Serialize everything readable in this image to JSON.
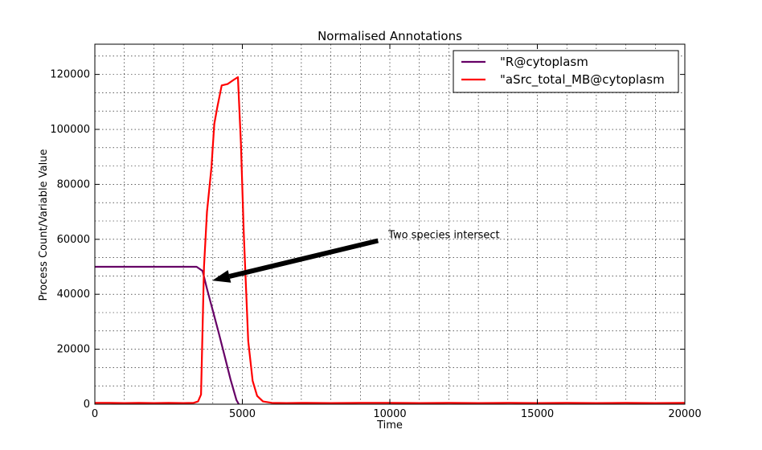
{
  "chart_data": {
    "type": "line",
    "title": "Normalised Annotations",
    "xlabel": "Time",
    "ylabel": "Process Count/Variable Value",
    "xlim": [
      0,
      20000
    ],
    "ylim": [
      0,
      120000
    ],
    "ylim_top": 131000,
    "x_ticks": [
      0,
      5000,
      10000,
      15000,
      20000
    ],
    "x_tick_labels": [
      "0",
      "5000",
      "10000",
      "15000",
      "20000"
    ],
    "y_ticks": [
      0,
      20000,
      40000,
      60000,
      80000,
      100000,
      120000
    ],
    "y_tick_labels": [
      "0",
      "20000",
      "40000",
      "60000",
      "80000",
      "100000",
      "120000"
    ],
    "grid": true,
    "legend_position": "top-right",
    "series": [
      {
        "name": "\"R@cytoplasm",
        "color": "#660066",
        "x": [
          0,
          500,
          1000,
          1500,
          2000,
          2500,
          3000,
          3450,
          3650,
          3800,
          4000,
          4200,
          4400,
          4600,
          4800,
          4880
        ],
        "y": [
          50000,
          50000,
          50000,
          50000,
          50000,
          50000,
          50000,
          50000,
          48500,
          42000,
          34000,
          26000,
          17500,
          9000,
          1500,
          0
        ]
      },
      {
        "name": "\"aSrc_total_MB@cytoplasm",
        "color": "#ff0000",
        "x": [
          0,
          500,
          1000,
          1500,
          2000,
          2500,
          3000,
          3350,
          3500,
          3600,
          3700,
          3800,
          3950,
          4050,
          4150,
          4300,
          4500,
          4700,
          4850,
          4950,
          5050,
          5200,
          5350,
          5500,
          5700,
          6000,
          6500,
          7000,
          8000,
          9000,
          10000,
          11000,
          12000,
          13000,
          14000,
          15000,
          16000,
          17000,
          18000,
          19000,
          20000
        ],
        "y": [
          500,
          500,
          400,
          500,
          400,
          500,
          400,
          500,
          1000,
          3500,
          50000,
          70000,
          86000,
          102000,
          108000,
          116000,
          116500,
          118000,
          119000,
          95000,
          62000,
          23000,
          8500,
          3000,
          1000,
          500,
          400,
          500,
          400,
          500,
          500,
          400,
          500,
          400,
          500,
          400,
          500,
          400,
          500,
          400,
          500
        ]
      }
    ],
    "annotation": {
      "text": "Two species intersect",
      "arrow_from": [
        9600,
        59500
      ],
      "arrow_to": [
        3980,
        45000
      ],
      "text_at": [
        9950,
        61500
      ]
    }
  }
}
